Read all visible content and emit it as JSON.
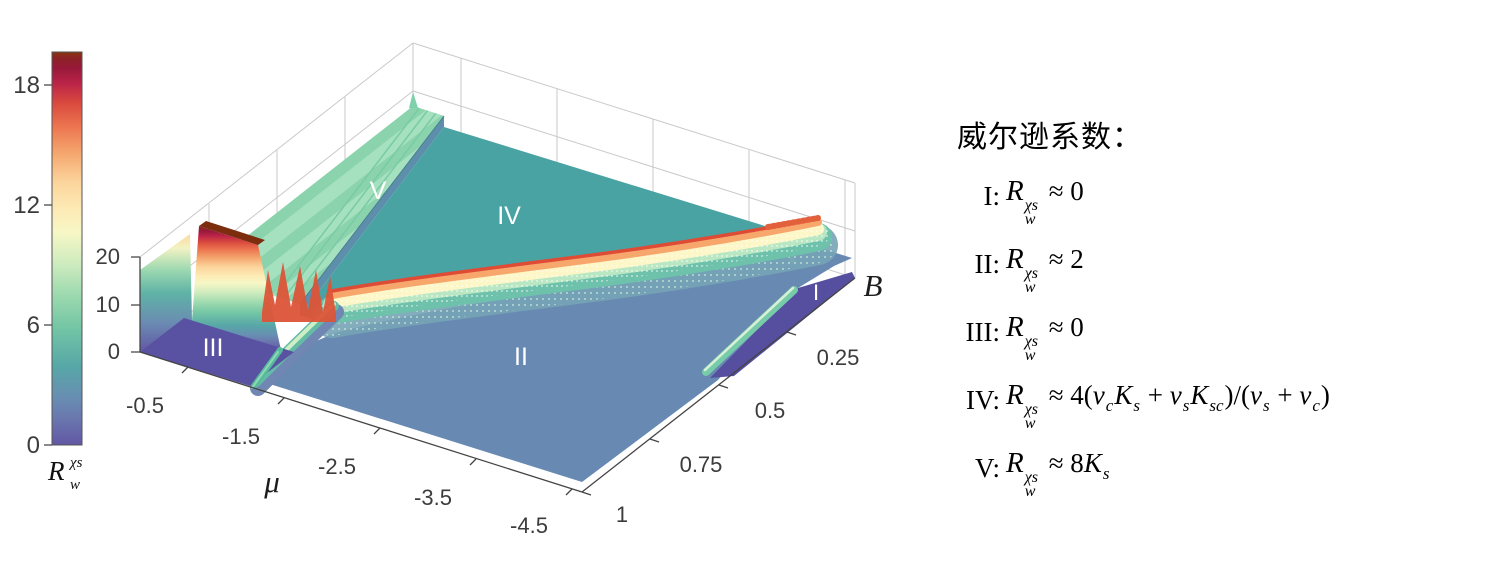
{
  "colorbar": {
    "ticks": [
      "18",
      "12",
      "6",
      "0"
    ],
    "label": {
      "base": "R",
      "sup": "χs",
      "sub": "w"
    },
    "min": 0,
    "max": 20
  },
  "plot": {
    "x_axis": {
      "label": "μ",
      "ticks": [
        "-0.5",
        "-1.5",
        "-2.5",
        "-3.5",
        "-4.5"
      ]
    },
    "y_axis": {
      "label": "B",
      "ticks": [
        "0.25",
        "0.5",
        "0.75",
        "1"
      ]
    },
    "z_axis": {
      "ticks": [
        "20",
        "10",
        "0"
      ]
    },
    "region_labels": [
      {
        "text": "III"
      },
      {
        "text": "V"
      },
      {
        "text": "IV"
      },
      {
        "text": "II"
      },
      {
        "text": "I"
      }
    ]
  },
  "legend": {
    "title": "威尔逊系数：",
    "r_base": "R",
    "r_sup": "χs",
    "r_sub": "w",
    "items": [
      {
        "num": "I:",
        "tail_segments": [
          [
            "t",
            " ≈ 0"
          ]
        ]
      },
      {
        "num": "II:",
        "tail_segments": [
          [
            "t",
            " ≈ 2"
          ]
        ]
      },
      {
        "num": "III:",
        "tail_segments": [
          [
            "t",
            " ≈ 0"
          ]
        ]
      },
      {
        "num": "IV:",
        "tail_segments": [
          [
            "t",
            " ≈ 4("
          ],
          [
            "i",
            "v"
          ],
          [
            "sub",
            "c"
          ],
          [
            "i",
            "K"
          ],
          [
            "sub",
            "s"
          ],
          [
            "t",
            " + "
          ],
          [
            "i",
            "v"
          ],
          [
            "sub",
            "s"
          ],
          [
            "i",
            "K"
          ],
          [
            "sub",
            "sc"
          ],
          [
            "t",
            ")/("
          ],
          [
            "i",
            "v"
          ],
          [
            "sub",
            "s"
          ],
          [
            "t",
            " + "
          ],
          [
            "i",
            "v"
          ],
          [
            "sub",
            "c"
          ],
          [
            "t",
            ")"
          ]
        ]
      },
      {
        "num": "V:",
        "tail_segments": [
          [
            "t",
            " ≈ 8"
          ],
          [
            "i",
            "K"
          ],
          [
            "sub",
            "s"
          ]
        ]
      }
    ]
  },
  "chart_data": {
    "type": "3d-surface",
    "title": "",
    "xlabel": "μ",
    "ylabel": "B",
    "zlabel": "R_w^{χs}",
    "x_range": [
      -4.6,
      0
    ],
    "y_range": [
      0,
      1
    ],
    "z_range": [
      0,
      20
    ],
    "x_ticks": [
      -0.5,
      -1.5,
      -2.5,
      -3.5,
      -4.5
    ],
    "y_ticks": [
      0.25,
      0.5,
      0.75,
      1
    ],
    "z_ticks": [
      0,
      10,
      20
    ],
    "colorbar": {
      "ticks": [
        0,
        6,
        12,
        18
      ],
      "range": [
        0,
        20
      ],
      "label": "R_w^{χs}"
    },
    "colormap_hint": "spectral-reversed: slate purple (0) → steel blue → teal → mint → pale yellow → orange → red → dark maroon/brown (20)",
    "regions": [
      {
        "label": "I",
        "plateau_value": 0,
        "location": "μ ≈ -4.5, B ≲ 0.3 (right corner)"
      },
      {
        "label": "II",
        "plateau_value": 2,
        "location": "front plain, μ below ridge curve"
      },
      {
        "label": "III",
        "plateau_value": 0,
        "location": "μ ≳ -1, B ≳ 0.8 (left corner)"
      },
      {
        "label": "IV",
        "plateau_value": 4.5,
        "location": "large back plateau"
      },
      {
        "label": "V",
        "plateau_value": 7,
        "location": "μ ≳ -1, B ≲ 0.8 stepped plateau"
      }
    ],
    "ridges": [
      {
        "description": "tall wall between III and V near B≈0.8, μ∈[-1,0]",
        "peak_value": 19
      },
      {
        "description": "curved rainbow crest between II and IV from (μ≈-1.2, B=1) to (μ≈-4.3, B≈0)",
        "peak_value": 10
      },
      {
        "description": "short teal ridge between I and II at μ≈-4.4",
        "peak_value": 6
      }
    ],
    "legend_text": {
      "title": "威尔逊系数：",
      "entries": [
        "I: R_w^{χs} ≈ 0",
        "II: R_w^{χs} ≈ 2",
        "III: R_w^{χs} ≈ 0",
        "IV: R_w^{χs} ≈ 4(v_c K_s + v_s K_sc)/(v_s + v_c)",
        "V: R_w^{χs} ≈ 8K_s"
      ]
    }
  }
}
